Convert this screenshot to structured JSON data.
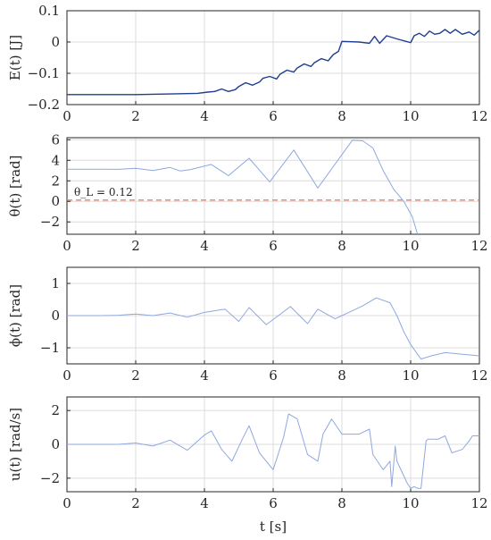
{
  "chart_data": [
    {
      "type": "line",
      "id": "energy",
      "ylabel": "E(t) [J]",
      "xlim": [
        0,
        12
      ],
      "ylim": [
        -0.2,
        0.1
      ],
      "xticks": [
        "0",
        "2",
        "4",
        "6",
        "8",
        "10",
        "12"
      ],
      "yticks": [
        "-0.2",
        "-0.1",
        "0",
        "0.1"
      ],
      "grid": true,
      "series": [
        {
          "color": "#1f3f8f",
          "x": [
            0,
            1,
            2,
            3,
            3.8,
            4.1,
            4.3,
            4.5,
            4.7,
            4.9,
            5.0,
            5.2,
            5.4,
            5.6,
            5.7,
            5.9,
            6.1,
            6.2,
            6.4,
            6.6,
            6.7,
            6.9,
            7.1,
            7.2,
            7.4,
            7.6,
            7.75,
            7.9,
            8.0,
            8.5,
            8.8,
            8.95,
            9.1,
            9.3,
            9.6,
            10.0,
            10.1,
            10.25,
            10.4,
            10.55,
            10.7,
            10.85,
            11.0,
            11.15,
            11.3,
            11.5,
            11.7,
            11.85,
            12
          ],
          "values": [
            -0.168,
            -0.168,
            -0.168,
            -0.166,
            -0.164,
            -0.16,
            -0.158,
            -0.15,
            -0.158,
            -0.152,
            -0.142,
            -0.13,
            -0.138,
            -0.128,
            -0.116,
            -0.11,
            -0.118,
            -0.103,
            -0.09,
            -0.096,
            -0.083,
            -0.07,
            -0.078,
            -0.066,
            -0.053,
            -0.06,
            -0.04,
            -0.03,
            0.002,
            0.0,
            -0.004,
            0.018,
            -0.004,
            0.02,
            0.01,
            -0.002,
            0.02,
            0.028,
            0.018,
            0.035,
            0.025,
            0.028,
            0.04,
            0.028,
            0.04,
            0.025,
            0.032,
            0.022,
            0.038
          ]
        }
      ]
    },
    {
      "type": "line",
      "id": "theta",
      "ylabel": "θ(t) [rad]",
      "xlim": [
        0,
        12
      ],
      "ylim": [
        -3.2,
        6.2
      ],
      "xticks": [
        "0",
        "2",
        "4",
        "6",
        "8",
        "10",
        "12"
      ],
      "yticks": [
        "-2",
        "0",
        "2",
        "4",
        "6"
      ],
      "grid": true,
      "annotation": {
        "text": "θ_L = 0.12",
        "value": 0.12
      },
      "reference_line": {
        "y": 0.12,
        "color": "#e8836b",
        "style": "dashed"
      },
      "series": [
        {
          "color": "#8fa8df",
          "x": [
            0,
            1,
            1.5,
            2,
            2.5,
            3,
            3.3,
            3.6,
            4.2,
            4.7,
            5.3,
            5.9,
            6.6,
            7.3,
            8.3,
            8.6,
            8.9,
            9.2,
            9.5,
            9.8,
            10.05,
            10.2
          ],
          "values": [
            3.14,
            3.14,
            3.12,
            3.22,
            3.0,
            3.3,
            2.95,
            3.1,
            3.6,
            2.5,
            4.2,
            1.9,
            5.0,
            1.3,
            5.95,
            5.9,
            5.2,
            3.0,
            1.2,
            0.0,
            -1.5,
            -3.2
          ]
        }
      ]
    },
    {
      "type": "line",
      "id": "phi",
      "ylabel": "ϕ(t) [rad]",
      "xlim": [
        0,
        12
      ],
      "ylim": [
        -1.5,
        1.5
      ],
      "xticks": [
        "0",
        "2",
        "4",
        "6",
        "8",
        "10",
        "12"
      ],
      "yticks": [
        "-1",
        "0",
        "1"
      ],
      "grid": true,
      "series": [
        {
          "color": "#8fa8df",
          "x": [
            0,
            1,
            1.5,
            2,
            2.5,
            3,
            3.5,
            4.0,
            4.6,
            5.0,
            5.3,
            5.8,
            6.5,
            7.0,
            7.3,
            7.8,
            8.2,
            8.6,
            9.0,
            9.4,
            9.6,
            9.8,
            10.0,
            10.3,
            10.6,
            11.0,
            11.5,
            12
          ],
          "values": [
            0,
            0,
            0.01,
            0.05,
            0.0,
            0.08,
            -0.05,
            0.1,
            0.2,
            -0.18,
            0.25,
            -0.28,
            0.28,
            -0.25,
            0.2,
            -0.1,
            0.1,
            0.3,
            0.55,
            0.4,
            0.0,
            -0.5,
            -0.9,
            -1.35,
            -1.25,
            -1.15,
            -1.2,
            -1.25
          ]
        }
      ]
    },
    {
      "type": "line",
      "id": "control",
      "ylabel": "u(t) [rad/s]",
      "xlabel": "t [s]",
      "xlim": [
        0,
        12
      ],
      "ylim": [
        -2.8,
        2.8
      ],
      "xticks": [
        "0",
        "2",
        "4",
        "6",
        "8",
        "10",
        "12"
      ],
      "yticks": [
        "-2",
        "0",
        "2"
      ],
      "grid": true,
      "series": [
        {
          "color": "#8fa8df",
          "x": [
            0,
            1,
            1.5,
            2.0,
            2.5,
            3.0,
            3.5,
            4.0,
            4.2,
            4.5,
            4.8,
            5.1,
            5.3,
            5.6,
            6.0,
            6.3,
            6.45,
            6.7,
            7.0,
            7.3,
            7.45,
            7.7,
            8.0,
            8.1,
            8.5,
            8.8,
            8.9,
            9.2,
            9.4,
            9.45,
            9.55,
            9.6,
            9.9,
            10.0,
            10.1,
            10.2,
            10.3,
            10.45,
            10.5,
            10.8,
            11.0,
            11.2,
            11.5,
            11.7,
            11.8,
            12
          ],
          "values": [
            0,
            0,
            0,
            0.08,
            -0.1,
            0.25,
            -0.35,
            0.55,
            0.8,
            -0.3,
            -1.0,
            0.3,
            1.1,
            -0.5,
            -1.5,
            0.4,
            1.8,
            1.5,
            -0.6,
            -1.0,
            0.6,
            1.5,
            0.6,
            0.6,
            0.6,
            0.9,
            -0.6,
            -1.5,
            -1.0,
            -2.5,
            -0.1,
            -1.0,
            -2.3,
            -2.6,
            -2.5,
            -2.6,
            -2.6,
            0.2,
            0.3,
            0.3,
            0.5,
            -0.5,
            -0.3,
            0.2,
            0.5,
            0.5
          ]
        }
      ]
    }
  ]
}
